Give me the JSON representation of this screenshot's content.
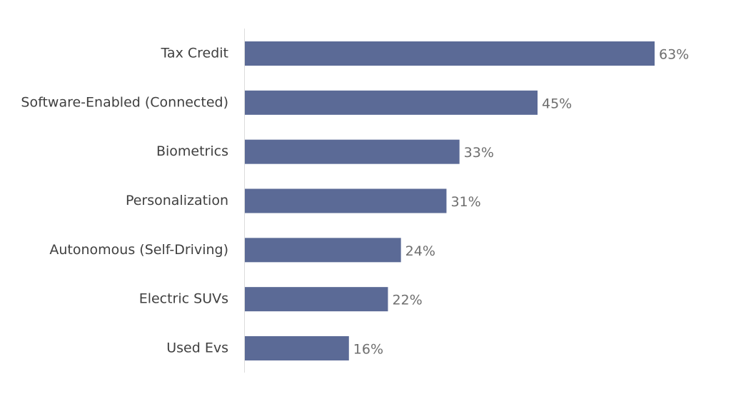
{
  "chart_data": {
    "type": "bar",
    "orientation": "horizontal",
    "categories": [
      "Tax Credit",
      "Software-Enabled (Connected)",
      "Biometrics",
      "Personalization",
      "Autonomous (Self-Driving)",
      "Electric SUVs",
      "Used Evs"
    ],
    "values": [
      63,
      45,
      33,
      31,
      24,
      22,
      16
    ],
    "value_labels": [
      "63%",
      "45%",
      "33%",
      "31%",
      "24%",
      "22%",
      "16%"
    ],
    "title": "",
    "xlabel": "",
    "ylabel": "",
    "xlim": [
      0,
      63
    ],
    "grid": false,
    "legend": "none",
    "colors": {
      "bar": "#5b6a96",
      "category_text": "#3f3f3f",
      "value_text": "#6e6e6e",
      "axis": "#dcdcdc"
    }
  }
}
